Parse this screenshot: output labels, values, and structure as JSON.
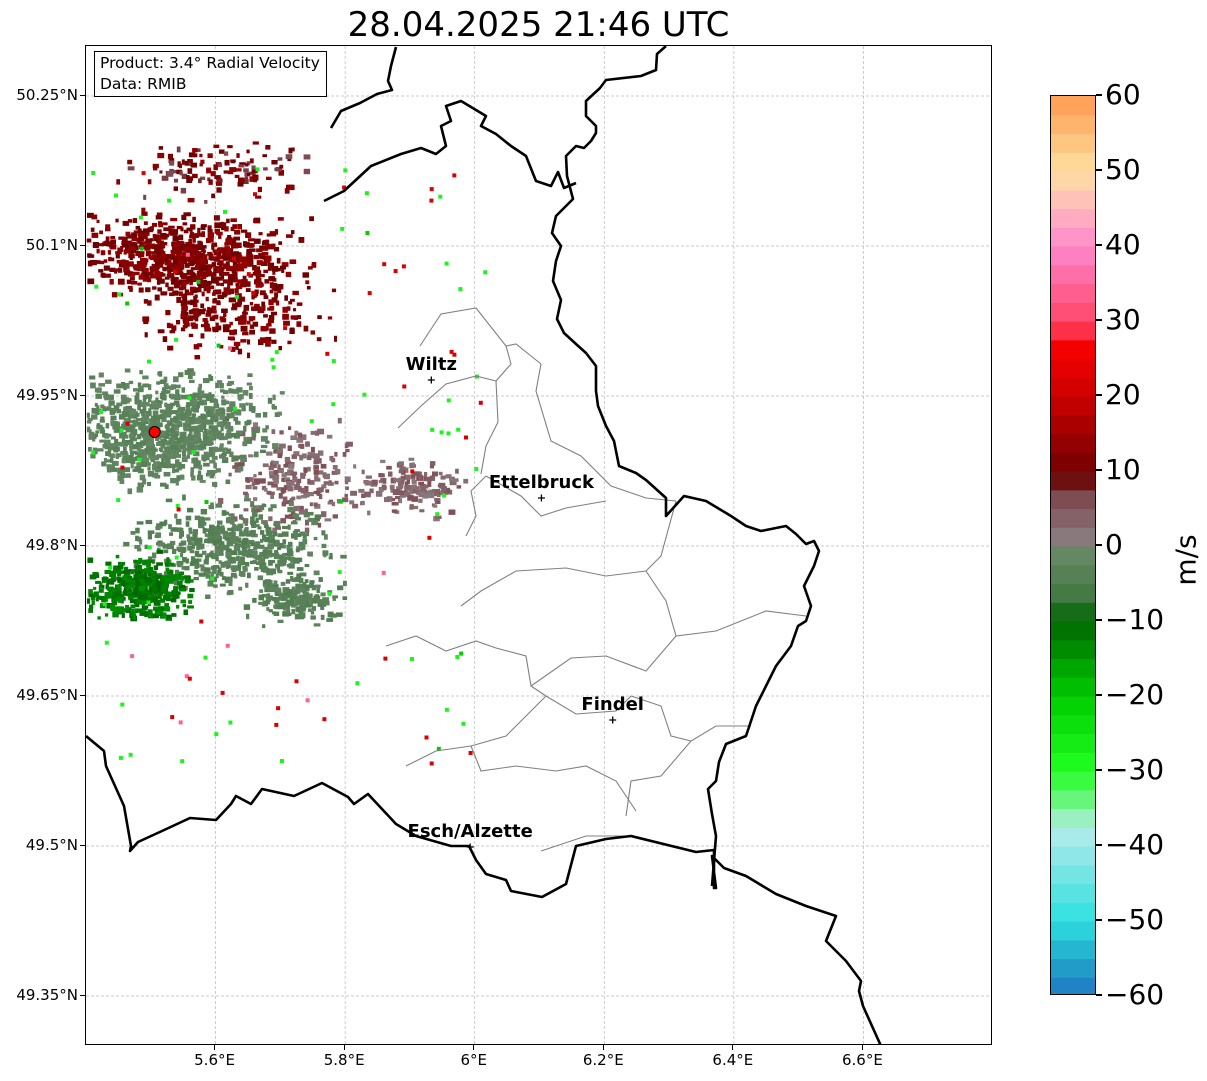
{
  "title": "28.04.2025 21:46 UTC",
  "info_box": {
    "product": "Product: 3.4° Radial Velocity",
    "data": "Data: RMIB"
  },
  "map": {
    "lon_min": 5.4,
    "lon_max": 6.8,
    "lat_min": 49.3,
    "lat_max": 50.3,
    "y_ticks": [
      {
        "label": "50.25°N",
        "lat": 50.25
      },
      {
        "label": "50.1°N",
        "lat": 50.1
      },
      {
        "label": "49.95°N",
        "lat": 49.95
      },
      {
        "label": "49.8°N",
        "lat": 49.8
      },
      {
        "label": "49.65°N",
        "lat": 49.65
      },
      {
        "label": "49.5°N",
        "lat": 49.5
      },
      {
        "label": "49.35°N",
        "lat": 49.35
      }
    ],
    "x_ticks": [
      {
        "label": "5.6°E",
        "lon": 5.6
      },
      {
        "label": "5.8°E",
        "lon": 5.8
      },
      {
        "label": "6°E",
        "lon": 6.0
      },
      {
        "label": "6.2°E",
        "lon": 6.2
      },
      {
        "label": "6.4°E",
        "lon": 6.4
      },
      {
        "label": "6.6°E",
        "lon": 6.6
      }
    ],
    "cities": [
      {
        "name": "Wiltz",
        "lon": 5.933,
        "lat": 49.966
      },
      {
        "name": "Ettelbruck",
        "lon": 6.103,
        "lat": 49.848
      },
      {
        "name": "Findel",
        "lon": 6.213,
        "lat": 49.626
      },
      {
        "name": "Esch/Alzette",
        "lon": 5.993,
        "lat": 49.499
      }
    ],
    "radar_site": {
      "lon": 5.506,
      "lat": 49.914,
      "color": "#ff0000"
    },
    "border_color": "#000000",
    "canton_color": "#808080"
  },
  "colorbar": {
    "unit": "m/s",
    "min": -60,
    "max": 60,
    "ticks": [
      {
        "label": "60",
        "value": 60
      },
      {
        "label": "50",
        "value": 50
      },
      {
        "label": "40",
        "value": 40
      },
      {
        "label": "30",
        "value": 30
      },
      {
        "label": "20",
        "value": 20
      },
      {
        "label": "10",
        "value": 10
      },
      {
        "label": "0",
        "value": 0
      },
      {
        "label": "−10",
        "value": -10
      },
      {
        "label": "−20",
        "value": -20
      },
      {
        "label": "−30",
        "value": -30
      },
      {
        "label": "−40",
        "value": -40
      },
      {
        "label": "−50",
        "value": -50
      },
      {
        "label": "−60",
        "value": -60
      }
    ],
    "stops": [
      {
        "value": -60,
        "color": "#1f78c1"
      },
      {
        "value": -55,
        "color": "#22a8cc"
      },
      {
        "value": -50,
        "color": "#2ee0e0"
      },
      {
        "value": -40,
        "color": "#9ee8e8"
      },
      {
        "value": -37,
        "color": "#b8f0f0"
      },
      {
        "value": -36,
        "color": "#90f0b0"
      },
      {
        "value": -30,
        "color": "#22ff22"
      },
      {
        "value": -20,
        "color": "#00cc00"
      },
      {
        "value": -10,
        "color": "#006600"
      },
      {
        "value": -6,
        "color": "#4a7a4a"
      },
      {
        "value": 0,
        "color": "#6b8a6b"
      },
      {
        "value": 1,
        "color": "#8a7a7e"
      },
      {
        "value": 8,
        "color": "#7a3c44"
      },
      {
        "value": 9,
        "color": "#6a0000"
      },
      {
        "value": 20,
        "color": "#cc0000"
      },
      {
        "value": 28,
        "color": "#ff0000"
      },
      {
        "value": 29,
        "color": "#ff4060"
      },
      {
        "value": 40,
        "color": "#ff88cc"
      },
      {
        "value": 45,
        "color": "#ffb8c0"
      },
      {
        "value": 50,
        "color": "#ffe0a0"
      },
      {
        "value": 60,
        "color": "#ff9a50"
      }
    ]
  }
}
